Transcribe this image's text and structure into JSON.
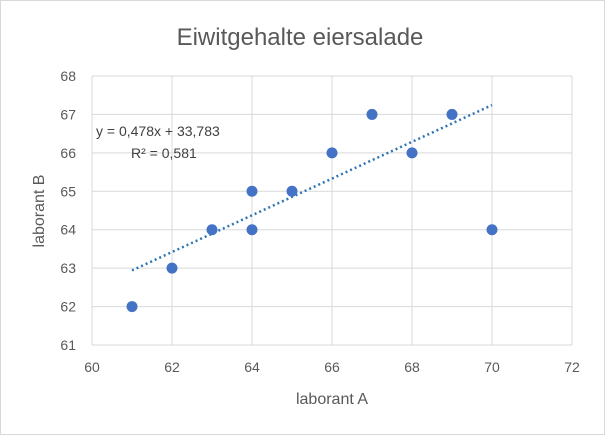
{
  "chart_data": {
    "type": "scatter",
    "title": "Eiwitgehalte eiersalade",
    "xlabel": "laborant A",
    "ylabel": "laborant B",
    "xlim": [
      60,
      72
    ],
    "ylim": [
      61,
      68
    ],
    "xticks": [
      60,
      62,
      64,
      66,
      68,
      70,
      72
    ],
    "yticks": [
      61,
      62,
      63,
      64,
      65,
      66,
      67,
      68
    ],
    "grid": true,
    "point_color": "#4472c4",
    "trendline_color": "#2e75b6",
    "points": [
      {
        "x": 61,
        "y": 62
      },
      {
        "x": 62,
        "y": 63
      },
      {
        "x": 63,
        "y": 64
      },
      {
        "x": 64,
        "y": 65
      },
      {
        "x": 64,
        "y": 64
      },
      {
        "x": 65,
        "y": 65
      },
      {
        "x": 66,
        "y": 66
      },
      {
        "x": 67,
        "y": 67
      },
      {
        "x": 68,
        "y": 66
      },
      {
        "x": 69,
        "y": 67
      },
      {
        "x": 70,
        "y": 64
      }
    ],
    "trendline": {
      "slope": 0.478,
      "intercept": 33.783,
      "x_range": [
        61,
        70
      ],
      "equation_label": "y = 0,478x + 33,783",
      "r2_label": "R² = 0,581"
    }
  }
}
